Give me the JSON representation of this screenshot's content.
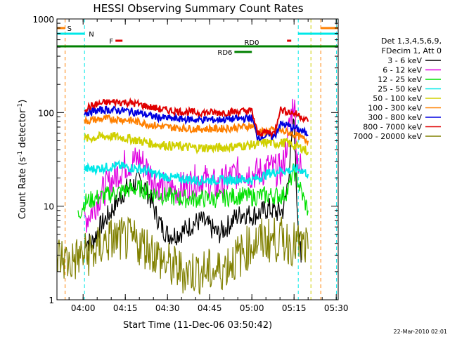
{
  "chart_data": {
    "type": "line",
    "title": "HESSI Observing Summary Count Rates",
    "xlabel": "Start Time (11-Dec-06 03:50:42)",
    "ylabel_main": "Count Rate (s",
    "ylabel_sup1": "-1",
    "ylabel_mid": " detector",
    "ylabel_sup2": "-1",
    "ylabel_end": ")",
    "y_scale": "log",
    "ylim": [
      1,
      1000
    ],
    "x_range_minutes": [
      230.7,
      330.7
    ],
    "x_ticks": [
      {
        "label": "04:00",
        "min": 240
      },
      {
        "label": "04:15",
        "min": 255
      },
      {
        "label": "04:30",
        "min": 270
      },
      {
        "label": "04:45",
        "min": 285
      },
      {
        "label": "05:00",
        "min": 300
      },
      {
        "label": "05:15",
        "min": 315
      },
      {
        "label": "05:30",
        "min": 330
      }
    ],
    "y_ticks": [
      {
        "label": "1",
        "value": 1
      },
      {
        "label": "10",
        "value": 10
      },
      {
        "label": "100",
        "value": 100
      },
      {
        "label": "1000",
        "value": 1000
      }
    ],
    "legend_header": [
      "Det 1,3,4,5,6,9,",
      "FDecim 1, Att 0"
    ],
    "series": [
      {
        "name": "3 - 6 keV",
        "color": "#000000",
        "points": [
          [
            240.5,
            4.5
          ],
          [
            243,
            4
          ],
          [
            246,
            6
          ],
          [
            249,
            8
          ],
          [
            252,
            11
          ],
          [
            255,
            15
          ],
          [
            258,
            17
          ],
          [
            260,
            19
          ],
          [
            262,
            16
          ],
          [
            264,
            12
          ],
          [
            266,
            8
          ],
          [
            268,
            6
          ],
          [
            270,
            5
          ],
          [
            273,
            5
          ],
          [
            276,
            5.5
          ],
          [
            279,
            6.5
          ],
          [
            282,
            7
          ],
          [
            285,
            6
          ],
          [
            288,
            5
          ],
          [
            291,
            6
          ],
          [
            294,
            7.5
          ],
          [
            297,
            8.5
          ],
          [
            300,
            8
          ],
          [
            303,
            8.5
          ],
          [
            306,
            9.5
          ],
          [
            309,
            8.5
          ],
          [
            311,
            9
          ],
          [
            312,
            12
          ],
          [
            314,
            40
          ],
          [
            315,
            85
          ],
          [
            315.5,
            30
          ],
          [
            316,
            12
          ],
          [
            317.5,
            2.5
          ]
        ]
      },
      {
        "name": "6 - 12 keV",
        "color": "#e000e0",
        "points": [
          [
            240.5,
            7
          ],
          [
            243,
            9
          ],
          [
            246,
            13
          ],
          [
            249,
            17
          ],
          [
            252,
            22
          ],
          [
            255,
            28
          ],
          [
            258,
            30
          ],
          [
            260,
            32
          ],
          [
            262,
            27
          ],
          [
            264,
            22
          ],
          [
            266,
            18
          ],
          [
            268,
            16
          ],
          [
            270,
            15
          ],
          [
            273,
            15
          ],
          [
            276,
            16
          ],
          [
            279,
            18
          ],
          [
            282,
            20
          ],
          [
            285,
            18
          ],
          [
            288,
            16
          ],
          [
            291,
            19
          ],
          [
            294,
            22
          ],
          [
            297,
            24
          ],
          [
            300,
            22
          ],
          [
            303,
            23
          ],
          [
            306,
            26
          ],
          [
            309,
            24
          ],
          [
            311,
            25
          ],
          [
            312,
            40
          ],
          [
            314,
            95
          ],
          [
            315,
            140
          ],
          [
            315.5,
            80
          ],
          [
            316,
            35
          ],
          [
            318,
            22
          ]
        ]
      },
      {
        "name": "12 - 25 keV",
        "color": "#00e000",
        "points": [
          [
            238.2,
            8
          ],
          [
            240.5,
            11
          ],
          [
            244,
            12
          ],
          [
            248,
            13
          ],
          [
            252,
            14
          ],
          [
            256,
            15
          ],
          [
            260,
            15.5
          ],
          [
            264,
            14
          ],
          [
            268,
            13
          ],
          [
            272,
            12.5
          ],
          [
            276,
            12
          ],
          [
            280,
            12
          ],
          [
            284,
            12
          ],
          [
            288,
            12
          ],
          [
            292,
            12.5
          ],
          [
            296,
            13
          ],
          [
            300,
            12.5
          ],
          [
            304,
            13
          ],
          [
            308,
            13
          ],
          [
            311,
            13
          ],
          [
            313,
            15
          ],
          [
            314,
            20
          ],
          [
            315,
            24
          ],
          [
            316,
            20
          ],
          [
            318,
            13
          ],
          [
            320,
            9
          ]
        ]
      },
      {
        "name": "25 - 50 keV",
        "color": "#00e8e8",
        "points": [
          [
            240.5,
            25
          ],
          [
            244,
            25
          ],
          [
            248,
            26
          ],
          [
            252,
            27
          ],
          [
            256,
            26
          ],
          [
            260,
            25
          ],
          [
            264,
            23
          ],
          [
            268,
            21
          ],
          [
            272,
            20
          ],
          [
            276,
            19.5
          ],
          [
            280,
            19
          ],
          [
            284,
            19
          ],
          [
            288,
            19
          ],
          [
            292,
            19
          ],
          [
            296,
            19.5
          ],
          [
            300,
            19
          ],
          [
            304,
            21
          ],
          [
            306,
            22.5
          ],
          [
            308,
            23
          ],
          [
            310,
            24
          ],
          [
            312,
            24
          ],
          [
            314,
            24
          ],
          [
            316,
            25
          ],
          [
            318,
            24
          ],
          [
            320,
            22
          ]
        ]
      },
      {
        "name": "50 - 100 keV",
        "color": "#d0d000",
        "points": [
          [
            240.5,
            52
          ],
          [
            244,
            54
          ],
          [
            248,
            56
          ],
          [
            252,
            55
          ],
          [
            256,
            53
          ],
          [
            260,
            50
          ],
          [
            264,
            47
          ],
          [
            268,
            45
          ],
          [
            272,
            44
          ],
          [
            276,
            43
          ],
          [
            280,
            42
          ],
          [
            284,
            42
          ],
          [
            288,
            42
          ],
          [
            292,
            43
          ],
          [
            296,
            44
          ],
          [
            300,
            45
          ],
          [
            304,
            47
          ],
          [
            306,
            48
          ],
          [
            308,
            47
          ],
          [
            310,
            47
          ],
          [
            312,
            48
          ],
          [
            314,
            46
          ],
          [
            316,
            43
          ],
          [
            318,
            42
          ],
          [
            320,
            38
          ]
        ]
      },
      {
        "name": "100 - 300 keV",
        "color": "#ff8000",
        "points": [
          [
            240.5,
            80
          ],
          [
            244,
            84
          ],
          [
            248,
            86
          ],
          [
            252,
            85
          ],
          [
            256,
            83
          ],
          [
            260,
            79
          ],
          [
            264,
            74
          ],
          [
            268,
            71
          ],
          [
            272,
            69
          ],
          [
            276,
            68
          ],
          [
            280,
            67
          ],
          [
            284,
            67
          ],
          [
            288,
            67
          ],
          [
            292,
            68
          ],
          [
            296,
            70
          ],
          [
            300,
            72
          ],
          [
            302,
            63
          ],
          [
            304,
            62
          ],
          [
            306,
            64
          ],
          [
            308,
            65
          ],
          [
            310,
            64
          ],
          [
            312,
            62
          ],
          [
            314,
            60
          ],
          [
            316,
            57
          ],
          [
            318,
            53
          ],
          [
            320,
            50
          ]
        ]
      },
      {
        "name": "300 - 800 keV",
        "color": "#0000e0",
        "points": [
          [
            240.5,
            100
          ],
          [
            244,
            104
          ],
          [
            248,
            107
          ],
          [
            252,
            106
          ],
          [
            256,
            104
          ],
          [
            260,
            99
          ],
          [
            264,
            92
          ],
          [
            268,
            88
          ],
          [
            272,
            86
          ],
          [
            276,
            85
          ],
          [
            280,
            84
          ],
          [
            284,
            84
          ],
          [
            288,
            84
          ],
          [
            292,
            85
          ],
          [
            296,
            86
          ],
          [
            300,
            88
          ],
          [
            302,
            55
          ],
          [
            304,
            56
          ],
          [
            306,
            57
          ],
          [
            308,
            55
          ],
          [
            310,
            75
          ],
          [
            312,
            74
          ],
          [
            314,
            70
          ],
          [
            316,
            67
          ],
          [
            318,
            63
          ],
          [
            320,
            58
          ]
        ]
      },
      {
        "name": "800 - 7000 keV",
        "color": "#e00000",
        "points": [
          [
            240.5,
            110
          ],
          [
            244,
            120
          ],
          [
            248,
            128
          ],
          [
            252,
            130
          ],
          [
            256,
            128
          ],
          [
            260,
            122
          ],
          [
            264,
            114
          ],
          [
            268,
            108
          ],
          [
            272,
            104
          ],
          [
            276,
            102
          ],
          [
            280,
            100
          ],
          [
            284,
            100
          ],
          [
            288,
            100
          ],
          [
            292,
            101
          ],
          [
            296,
            103
          ],
          [
            300,
            104
          ],
          [
            302,
            60
          ],
          [
            304,
            61
          ],
          [
            306,
            62
          ],
          [
            308,
            60
          ],
          [
            310,
            108
          ],
          [
            312,
            104
          ],
          [
            314,
            100
          ],
          [
            316,
            96
          ],
          [
            318,
            90
          ],
          [
            320,
            80
          ]
        ]
      },
      {
        "name": "7000 - 20000 keV",
        "color": "#808000",
        "points": [
          [
            230.7,
            3
          ],
          [
            235,
            2.5
          ],
          [
            240,
            3
          ],
          [
            244,
            3.2
          ],
          [
            248,
            4.2
          ],
          [
            252,
            4.5
          ],
          [
            256,
            4.3
          ],
          [
            260,
            4
          ],
          [
            264,
            3.5
          ],
          [
            268,
            2.6
          ],
          [
            272,
            2.2
          ],
          [
            276,
            2
          ],
          [
            280,
            2
          ],
          [
            284,
            2
          ],
          [
            288,
            2
          ],
          [
            292,
            2.5
          ],
          [
            296,
            3
          ],
          [
            300,
            4
          ],
          [
            304,
            4.3
          ],
          [
            308,
            4.4
          ],
          [
            312,
            4.3
          ],
          [
            316,
            3.8
          ],
          [
            320,
            3.5
          ]
        ]
      }
    ],
    "flag_bars": [
      {
        "label": "S",
        "color": "#ff8000",
        "segments": [
          [
            230.7,
            233.6
          ],
          [
            324.5,
            330.7
          ]
        ],
        "level": 0
      },
      {
        "label": "N",
        "color": "#00e8e8",
        "segments": [
          [
            230.7,
            240.5
          ],
          [
            316.5,
            330.7
          ]
        ],
        "level": 1
      },
      {
        "label": "F",
        "color": "#e00000",
        "segments": [
          [
            251.5,
            254
          ],
          [
            312.5,
            314
          ]
        ],
        "level": 2
      },
      {
        "label": "RD0",
        "color": "#008000",
        "segments": [
          [
            230.7,
            330.7
          ]
        ],
        "level": 3
      },
      {
        "label": "RD6",
        "color": "#008000",
        "segments": [
          [
            293.8,
            300
          ]
        ],
        "level": 4
      }
    ],
    "vertical_markers": [
      {
        "min": 233.6,
        "color": "#ff8000"
      },
      {
        "min": 240.5,
        "color": "#00e8e8"
      },
      {
        "min": 316.5,
        "color": "#00e8e8"
      },
      {
        "min": 321,
        "color": "#d0d000"
      },
      {
        "min": 324.5,
        "color": "#ff8000"
      },
      {
        "min": 330.1,
        "color": "#00e8e8"
      }
    ],
    "footer_text": "22-Mar-2010 02:01"
  }
}
